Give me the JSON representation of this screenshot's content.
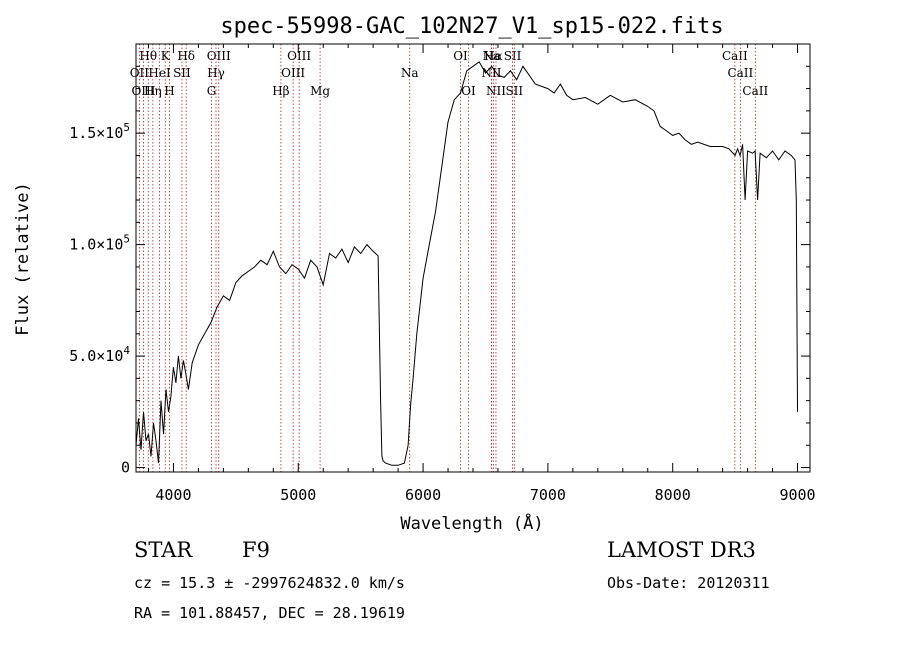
{
  "chart_data": {
    "type": "line",
    "title": "spec-55998-GAC_102N27_V1_sp15-022.fits",
    "xlabel": "Wavelength (Å)",
    "ylabel": "Flux (relative)",
    "xlim": [
      3700,
      9100
    ],
    "ylim": [
      -2000,
      190000
    ],
    "xticks": [
      4000,
      5000,
      6000,
      7000,
      8000,
      9000
    ],
    "xtick_labels": [
      "4000",
      "5000",
      "6000",
      "7000",
      "8000",
      "9000"
    ],
    "yticks": [
      0,
      50000,
      100000,
      150000
    ],
    "ytick_labels": [
      {
        "mant": "0",
        "exp": ""
      },
      {
        "mant": "5.0×10",
        "exp": "4"
      },
      {
        "mant": "1.0×10",
        "exp": "5"
      },
      {
        "mant": "1.5×10",
        "exp": "5"
      }
    ],
    "series": [
      {
        "name": "spectrum",
        "x": [
          3700,
          3720,
          3740,
          3760,
          3780,
          3800,
          3820,
          3840,
          3860,
          3880,
          3900,
          3920,
          3940,
          3960,
          3980,
          4000,
          4020,
          4040,
          4060,
          4080,
          4100,
          4120,
          4150,
          4200,
          4250,
          4300,
          4350,
          4400,
          4450,
          4500,
          4550,
          4600,
          4650,
          4700,
          4750,
          4800,
          4850,
          4900,
          4950,
          5000,
          5050,
          5100,
          5150,
          5200,
          5250,
          5300,
          5350,
          5400,
          5450,
          5500,
          5550,
          5600,
          5640,
          5660,
          5670,
          5680,
          5700,
          5750,
          5800,
          5850,
          5880,
          5900,
          5920,
          5950,
          6000,
          6050,
          6100,
          6150,
          6200,
          6250,
          6300,
          6320,
          6350,
          6400,
          6450,
          6500,
          6550,
          6600,
          6650,
          6700,
          6750,
          6800,
          6850,
          6900,
          6950,
          7000,
          7050,
          7100,
          7150,
          7200,
          7300,
          7400,
          7500,
          7600,
          7700,
          7800,
          7850,
          7900,
          7950,
          8000,
          8050,
          8100,
          8150,
          8200,
          8300,
          8400,
          8450,
          8500,
          8520,
          8540,
          8560,
          8580,
          8600,
          8640,
          8660,
          8680,
          8700,
          8750,
          8800,
          8850,
          8900,
          8950,
          8980,
          8990,
          9000
        ],
        "y": [
          10000,
          22000,
          8000,
          25000,
          12000,
          15000,
          5000,
          20000,
          12000,
          2000,
          30000,
          15000,
          35000,
          25000,
          32000,
          45000,
          38000,
          50000,
          40000,
          48000,
          42000,
          35000,
          47000,
          55000,
          60000,
          65000,
          72000,
          77000,
          75000,
          83000,
          86000,
          88000,
          90000,
          93000,
          91000,
          97000,
          90000,
          87000,
          91000,
          89000,
          85000,
          93000,
          90000,
          82000,
          96000,
          94000,
          98000,
          92000,
          99000,
          96000,
          100000,
          97000,
          95000,
          30000,
          5000,
          3000,
          2000,
          1000,
          1000,
          2000,
          10000,
          28000,
          40000,
          60000,
          85000,
          100000,
          115000,
          135000,
          155000,
          165000,
          168000,
          172000,
          178000,
          180000,
          182000,
          177000,
          180000,
          176000,
          175000,
          178000,
          174000,
          180000,
          176000,
          172000,
          171000,
          170000,
          168000,
          172000,
          167000,
          165000,
          166000,
          163000,
          167000,
          164000,
          165000,
          162000,
          160000,
          153000,
          151000,
          149000,
          150000,
          147000,
          145000,
          146000,
          144000,
          144000,
          143000,
          140000,
          143000,
          140000,
          145000,
          120000,
          142000,
          141000,
          142000,
          120000,
          141000,
          139000,
          142000,
          138000,
          142000,
          140000,
          138000,
          120000,
          25000
        ]
      }
    ],
    "lines": [
      {
        "name": "Hθ",
        "x": 3798,
        "row": 1
      },
      {
        "name": "OII",
        "x": 3727,
        "row": 2
      },
      {
        "name": "OIII",
        "x": 3760,
        "row": 3
      },
      {
        "name": "K",
        "x": 3934,
        "row": 1
      },
      {
        "name": "HeI",
        "x": 3889,
        "row": 2
      },
      {
        "name": "Hη",
        "x": 3835,
        "row": 3
      },
      {
        "name": "SII",
        "x": 4068,
        "row": 2
      },
      {
        "name": "H",
        "x": 3968,
        "row": 3
      },
      {
        "name": "Hδ",
        "x": 4102,
        "row": 1
      },
      {
        "name": "OIII",
        "x": 4363,
        "row": 1
      },
      {
        "name": "Hγ",
        "x": 4341,
        "row": 2
      },
      {
        "name": "G",
        "x": 4305,
        "row": 3
      },
      {
        "name": "Hβ",
        "x": 4861,
        "row": 3
      },
      {
        "name": "OIII",
        "x": 5007,
        "row": 1
      },
      {
        "name": "OIII",
        "x": 4959,
        "row": 2
      },
      {
        "name": "Mg",
        "x": 5175,
        "row": 3
      },
      {
        "name": "Na",
        "x": 5893,
        "row": 2
      },
      {
        "name": "OI",
        "x": 6300,
        "row": 1
      },
      {
        "name": "OI",
        "x": 6364,
        "row": 3
      },
      {
        "name": "Na",
        "x": 6548,
        "row": 1
      },
      {
        "name": "NII",
        "x": 6548,
        "row": 2
      },
      {
        "name": "NII",
        "x": 6584,
        "row": 3
      },
      {
        "name": "SII",
        "x": 6717,
        "row": 1
      },
      {
        "name": "Hα",
        "x": 6563,
        "row": 1
      },
      {
        "name": "SII",
        "x": 6731,
        "row": 3
      },
      {
        "name": "CaII",
        "x": 8498,
        "row": 1
      },
      {
        "name": "CaII",
        "x": 8542,
        "row": 2
      },
      {
        "name": "CaII",
        "x": 8662,
        "row": 3
      }
    ],
    "line_color": "#b22222",
    "grid": false
  },
  "info": {
    "class": "STAR",
    "subclass": "F9",
    "survey": "LAMOST DR3",
    "cz": "cz = 15.3 ± -2997624832.0 km/s",
    "obs_date": "Obs-Date: 20120311",
    "radec": "RA = 101.88457, DEC =  28.19619"
  }
}
